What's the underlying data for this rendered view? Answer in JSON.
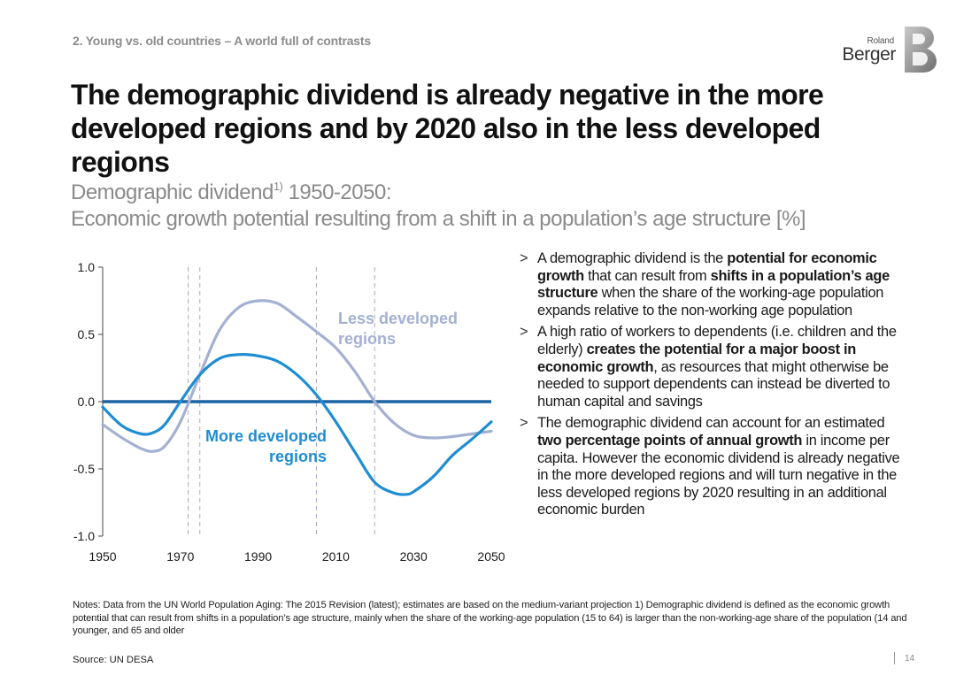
{
  "section_label": "2. Young vs. old countries – A world full of contrasts",
  "logo": {
    "small_text": "Roland",
    "big_text": "Berger"
  },
  "title": "The demographic dividend is already negative in the more developed regions and by 2020 also in the less developed regions",
  "subtitle": {
    "line1_main": "Demographic dividend",
    "line1_sup": "1)",
    "line1_rest": " 1950-2050:",
    "line2": "Economic growth potential resulting from a shift in a population’s age structure [%]"
  },
  "chart_data": {
    "type": "line",
    "x_ticks": [
      "1950",
      "1970",
      "1990",
      "2010",
      "2030",
      "2050"
    ],
    "y_ticks": [
      "1.0",
      "0.5",
      "0.0",
      "-0.5",
      "-1.0"
    ],
    "xlim": [
      1950,
      2050
    ],
    "ylim": [
      -1.0,
      1.0
    ],
    "grid": false,
    "zero_line": true,
    "series": [
      {
        "name": "Less developed regions",
        "label_lines": [
          "Less developed",
          "regions"
        ],
        "color": "#a3b0d1",
        "x": [
          1950,
          1955,
          1960,
          1963,
          1966,
          1970,
          1975,
          1980,
          1985,
          1990,
          1995,
          2000,
          2005,
          2010,
          2015,
          2020,
          2025,
          2030,
          2035,
          2040,
          2045,
          2050
        ],
        "y": [
          -0.17,
          -0.27,
          -0.35,
          -0.37,
          -0.33,
          -0.15,
          0.2,
          0.53,
          0.7,
          0.75,
          0.73,
          0.63,
          0.52,
          0.4,
          0.22,
          0.0,
          -0.16,
          -0.25,
          -0.27,
          -0.26,
          -0.24,
          -0.22
        ]
      },
      {
        "name": "More developed regions",
        "label_lines": [
          "More developed",
          "regions"
        ],
        "color": "#1f8dd2",
        "x": [
          1950,
          1955,
          1960,
          1963,
          1966,
          1970,
          1975,
          1980,
          1985,
          1990,
          1995,
          2000,
          2005,
          2010,
          2015,
          2020,
          2025,
          2028,
          2030,
          2035,
          2040,
          2045,
          2050
        ],
        "y": [
          -0.04,
          -0.18,
          -0.24,
          -0.23,
          -0.17,
          0.0,
          0.2,
          0.32,
          0.35,
          0.34,
          0.3,
          0.2,
          0.05,
          -0.15,
          -0.38,
          -0.6,
          -0.68,
          -0.69,
          -0.67,
          -0.56,
          -0.4,
          -0.28,
          -0.15
        ]
      }
    ],
    "zero_line_color": "#1b63a3",
    "reference_lines_x": [
      1972,
      1975,
      2005,
      2020
    ]
  },
  "bullets": [
    [
      {
        "t": "A demographic dividend is the "
      },
      {
        "t": "potential for economic growth",
        "b": true
      },
      {
        "t": " that can result from "
      },
      {
        "t": "shifts in a population’s age structure",
        "b": true
      },
      {
        "t": " when the share of the working-age population expands relative to the non-working age population"
      }
    ],
    [
      {
        "t": "A high ratio of workers to dependents (i.e. children and the elderly) "
      },
      {
        "t": "creates the potential for a major boost in economic growth",
        "b": true
      },
      {
        "t": ", as resources that might otherwise be needed to support dependents can instead be diverted to human capital and savings"
      }
    ],
    [
      {
        "t": "The demographic dividend can account for an estimated "
      },
      {
        "t": "two percentage points of annual growth",
        "b": true
      },
      {
        "t": " in income per capita. However the economic dividend is already negative in the more developed regions and will turn negative in the less developed regions by 2020 resulting in an additional economic burden"
      }
    ]
  ],
  "bullet_marker": ">",
  "notes": "Notes: Data from the UN World Population Aging: The 2015 Revision (latest); estimates are based on the medium-variant projection 1) Demographic dividend is defined as the economic growth potential that can result from shifts in a population’s age structure, mainly when the share of the working-age population (15 to 64) is larger than the non-working-age share of the population (14 and younger, and 65 and older",
  "source": "Source: UN DESA",
  "page_number": "14"
}
